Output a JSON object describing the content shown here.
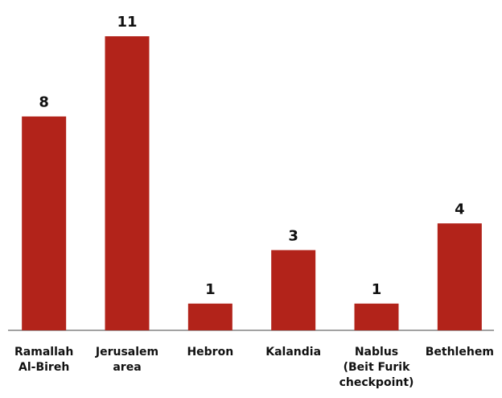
{
  "chart_data": {
    "type": "bar",
    "categories": [
      "Ramallah Al-Bireh",
      "Jerusalem area",
      "Hebron",
      "Kalandia",
      "Nablus (Beit Furik checkpoint)",
      "Bethlehem"
    ],
    "values": [
      8,
      11,
      1,
      3,
      1,
      4
    ],
    "color": "#b2231a",
    "ylim": [
      0,
      11
    ]
  }
}
